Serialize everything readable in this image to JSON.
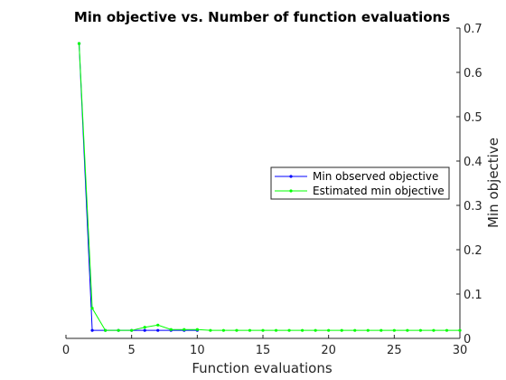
{
  "chart_data": {
    "type": "line",
    "title": "Min objective vs. Number of function evaluations",
    "xlabel": "Function evaluations",
    "ylabel": "Min objective",
    "xlim": [
      0,
      30
    ],
    "ylim": [
      0,
      0.7
    ],
    "x_ticks": [
      0,
      5,
      10,
      15,
      20,
      25,
      30
    ],
    "y_ticks": [
      0,
      0.1,
      0.2,
      0.3,
      0.4,
      0.5,
      0.6,
      0.7
    ],
    "x_tick_labels": [
      "0",
      "5",
      "10",
      "15",
      "20",
      "25",
      "30"
    ],
    "y_tick_labels": [
      "0",
      "0.1",
      "0.2",
      "0.3",
      "0.4",
      "0.5",
      "0.6",
      "0.7"
    ],
    "y_axis_side": "right",
    "grid": false,
    "legend_position": "center-right",
    "series": [
      {
        "name": "Min observed objective",
        "color": "#0000ff",
        "marker": "dot",
        "x": [
          1,
          2,
          3,
          4,
          5,
          6,
          7,
          8,
          9,
          10
        ],
        "y": [
          0.665,
          0.018,
          0.018,
          0.018,
          0.018,
          0.018,
          0.018,
          0.018,
          0.018,
          0.018
        ]
      },
      {
        "name": "Estimated min objective",
        "color": "#00ff00",
        "marker": "dot",
        "x": [
          1,
          2,
          3,
          4,
          5,
          6,
          7,
          8,
          9,
          10,
          11,
          12,
          13,
          14,
          15,
          16,
          17,
          18,
          19,
          20,
          21,
          22,
          23,
          24,
          25,
          26,
          27,
          28,
          29,
          30
        ],
        "y": [
          0.665,
          0.068,
          0.018,
          0.018,
          0.018,
          0.025,
          0.03,
          0.02,
          0.02,
          0.02,
          0.018,
          0.018,
          0.018,
          0.018,
          0.018,
          0.018,
          0.018,
          0.018,
          0.018,
          0.018,
          0.018,
          0.018,
          0.018,
          0.018,
          0.018,
          0.018,
          0.018,
          0.018,
          0.018,
          0.018
        ]
      }
    ]
  }
}
